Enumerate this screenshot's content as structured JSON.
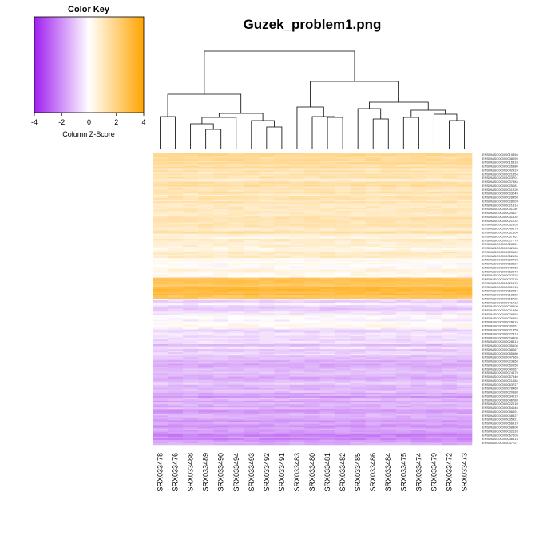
{
  "title": "Guzek_problem1.png",
  "color_key": {
    "title": "Color Key",
    "xlabel": "Column Z-Score",
    "ticks": [
      "-4",
      "-2",
      "0",
      "2",
      "4"
    ],
    "range": [
      -4,
      4
    ],
    "colors": {
      "low": "#a020f0",
      "mid": "#ffffff",
      "high": "#ffa500"
    }
  },
  "chart_data": {
    "type": "heatmap",
    "columns": [
      "SRX033478",
      "SRX033476",
      "SRX033488",
      "SRX033489",
      "SRX033490",
      "SRX033494",
      "SRX033493",
      "SRX033492",
      "SRX033491",
      "SRX033483",
      "SRX033480",
      "SRX033481",
      "SRX033482",
      "SRX033485",
      "SRX033486",
      "SRX033484",
      "SRX033475",
      "SRX033474",
      "SRX033479",
      "SRX033472",
      "SRX033473"
    ],
    "row_labels": [
      "ENSMUSG00000019856",
      "ENSMUSG00000038059",
      "ENSMUSG00000016318",
      "ENSMUSG00000026880",
      "ENSMUSG00000042419",
      "ENSMUSG00000021354",
      "ENSMUSG00000023701",
      "ENSMUSG00000037984",
      "ENSMUSG00000025081",
      "ENSMUSG00000001220",
      "ENSMUSG00000003245",
      "ENSMUSG00000028458",
      "ENSMUSG00000028009",
      "ENSMUSG00000021814",
      "ENSMUSG00000041159",
      "ENSMUSG00000024427",
      "ENSMUSG00000041532",
      "ENSMUSG00000021232",
      "ENSMUSG00000032453",
      "ENSMUSG00000049175",
      "ENSMUSG00000031604",
      "ENSMUSG00000037361",
      "ENSMUSG00000027775",
      "ENSMUSG00000028351",
      "ENSMUSG00000042066",
      "ENSMUSG00000020120",
      "ENSMUSG00000052133",
      "ENSMUSG00000020708",
      "ENSMUSG00000068324",
      "ENSMUSG00000046768",
      "ENSMUSG00000062273",
      "ENSMUSG00000037428",
      "ENSMUSG00000037679",
      "ENSMUSG00000021375",
      "ENSMUSG00000031213",
      "ENSMUSG00000062054",
      "ENSMUSG00000018889",
      "ENSMUSG00000015725",
      "ENSMUSG00000041412",
      "ENSMUSG00000028809",
      "ENSMUSG00000021880",
      "ENSMUSG00000078958",
      "ENSMUSG00000026852",
      "ENSMUSG00000028915",
      "ENSMUSG00000030051",
      "ENSMUSG00000021559",
      "ENSMUSG00000027313",
      "ENSMUSG00000024805",
      "ENSMUSG00000028813",
      "ENSMUSG00000035108",
      "ENSMUSG00000038067",
      "ENSMUSG00000055580",
      "ENSMUSG00000047565",
      "ENSMUSG00000023868",
      "ENSMUSG00000050058",
      "ENSMUSG00000040067",
      "ENSMUSG00000074575",
      "ENSMUSG00000057540",
      "ENSMUSG00000021684",
      "ENSMUSG00000063727",
      "ENSMUSG00000078469",
      "ENSMUSG00000020588",
      "ENSMUSG00000034019",
      "ENSMUSG00000046788",
      "ENSMUSG00000022010",
      "ENSMUSG00000054046",
      "ENSMUSG00000056491",
      "ENSMUSG00000048927",
      "ENSMUSG00000035421",
      "ENSMUSG00000066919",
      "ENSMUSG00000058800",
      "ENSMUSG00000032133",
      "ENSMUSG00000067605",
      "ENSMUSG00000038913",
      "ENSMUSG00000037727"
    ],
    "value_range": [
      -4,
      4
    ],
    "row_profile": [
      {
        "rows": 0.05,
        "z": 1.6
      },
      {
        "rows": 0.08,
        "z": 1.2
      },
      {
        "rows": 0.07,
        "z": 0.9
      },
      {
        "rows": 0.06,
        "z": 1.1
      },
      {
        "rows": 0.08,
        "z": 0.6
      },
      {
        "rows": 0.06,
        "z": 0.3
      },
      {
        "rows": 0.07,
        "z": 2.8
      },
      {
        "rows": 0.04,
        "z": -0.6
      },
      {
        "rows": 0.06,
        "z": -0.1
      },
      {
        "rows": 0.1,
        "z": -0.9
      },
      {
        "rows": 0.1,
        "z": -1.2
      },
      {
        "rows": 0.09,
        "z": -1.5
      },
      {
        "rows": 0.08,
        "z": -1.9
      }
    ],
    "column_dendrogram": true,
    "row_dendrogram": false
  }
}
